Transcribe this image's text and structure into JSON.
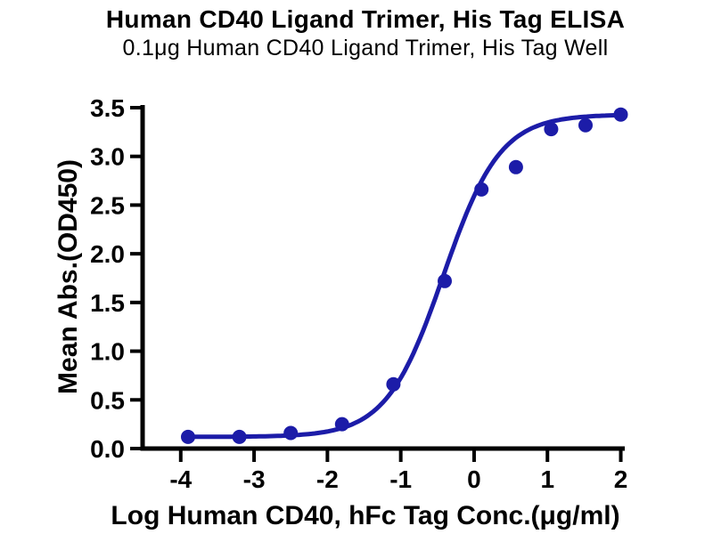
{
  "header": {
    "title": "Human CD40 Ligand Trimer, His Tag ELISA",
    "subtitle": "0.1μg Human CD40 Ligand Trimer, His Tag Well"
  },
  "chart_data": {
    "type": "scatter",
    "title": "Human CD40 Ligand Trimer, His Tag ELISA",
    "subtitle": "0.1μg Human CD40 Ligand Trimer, His Tag Well",
    "xlabel": "Log Human CD40, hFc Tag Conc.(μg/ml)",
    "ylabel": "Mean Abs.(OD450)",
    "series": [
      {
        "name": "Human CD40, hFc Tag",
        "x": [
          -3.9,
          -3.2,
          -2.5,
          -1.8,
          -1.1,
          -0.4,
          0.1,
          0.57,
          1.05,
          1.52,
          2.0
        ],
        "y": [
          0.12,
          0.12,
          0.16,
          0.25,
          0.66,
          1.72,
          2.66,
          2.89,
          3.28,
          3.32,
          3.43
        ]
      }
    ],
    "fit_4pl": {
      "model": "four-parameter logistic",
      "bottom": 0.12,
      "top": 3.43,
      "log_ec50": -0.42,
      "hill": 1.12
    },
    "xlim": [
      -4.52,
      2.03
    ],
    "ylim": [
      0,
      3.5
    ],
    "xticks": [
      -4,
      -3,
      -2,
      -1,
      0,
      1,
      2
    ],
    "xtick_labels": [
      "-4",
      "-3",
      "-2",
      "-1",
      "0",
      "1",
      "2"
    ],
    "yticks": [
      0,
      0.5,
      1,
      1.5,
      2,
      2.5,
      3,
      3.5
    ],
    "ytick_labels": [
      "0.0",
      "0.5",
      "1.0",
      "1.5",
      "2.0",
      "2.5",
      "3.0",
      "3.5"
    ],
    "grid": false,
    "legend": null,
    "marker": "circle",
    "colors": {
      "series": "#1c1ca8",
      "axis": "#000000",
      "text": "#000000",
      "background": "#ffffff"
    }
  }
}
